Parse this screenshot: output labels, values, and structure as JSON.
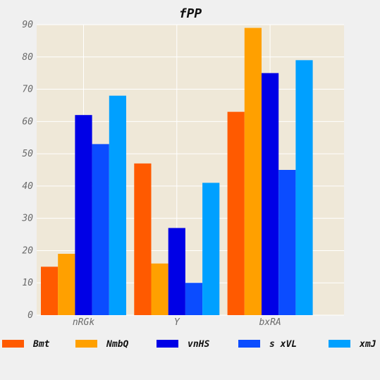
{
  "chart_data": {
    "type": "bar",
    "title": "fPP",
    "xlabel": "",
    "ylabel": "",
    "categories": [
      "nRGk",
      "Y",
      "bxRA"
    ],
    "ylim": [
      0,
      90
    ],
    "yticks": [
      0,
      10,
      20,
      30,
      40,
      50,
      60,
      70,
      80,
      90
    ],
    "grid": true,
    "legend_position": "bottom",
    "series": [
      {
        "name": "Bmt",
        "color": "#ff5a00",
        "values": [
          15,
          47,
          63
        ]
      },
      {
        "name": "NmbQ",
        "color": "#ffa000",
        "values": [
          19,
          16,
          89
        ]
      },
      {
        "name": "vnHS",
        "color": "#0000e6",
        "values": [
          62,
          27,
          75
        ]
      },
      {
        "name": "s xVL",
        "color": "#0b4cff",
        "values": [
          53,
          10,
          45
        ]
      },
      {
        "name": "xmJ",
        "color": "#00a0ff",
        "values": [
          68,
          41,
          79
        ]
      }
    ],
    "plot_background": "#efe8d8",
    "page_background": "#f0f0f0"
  }
}
